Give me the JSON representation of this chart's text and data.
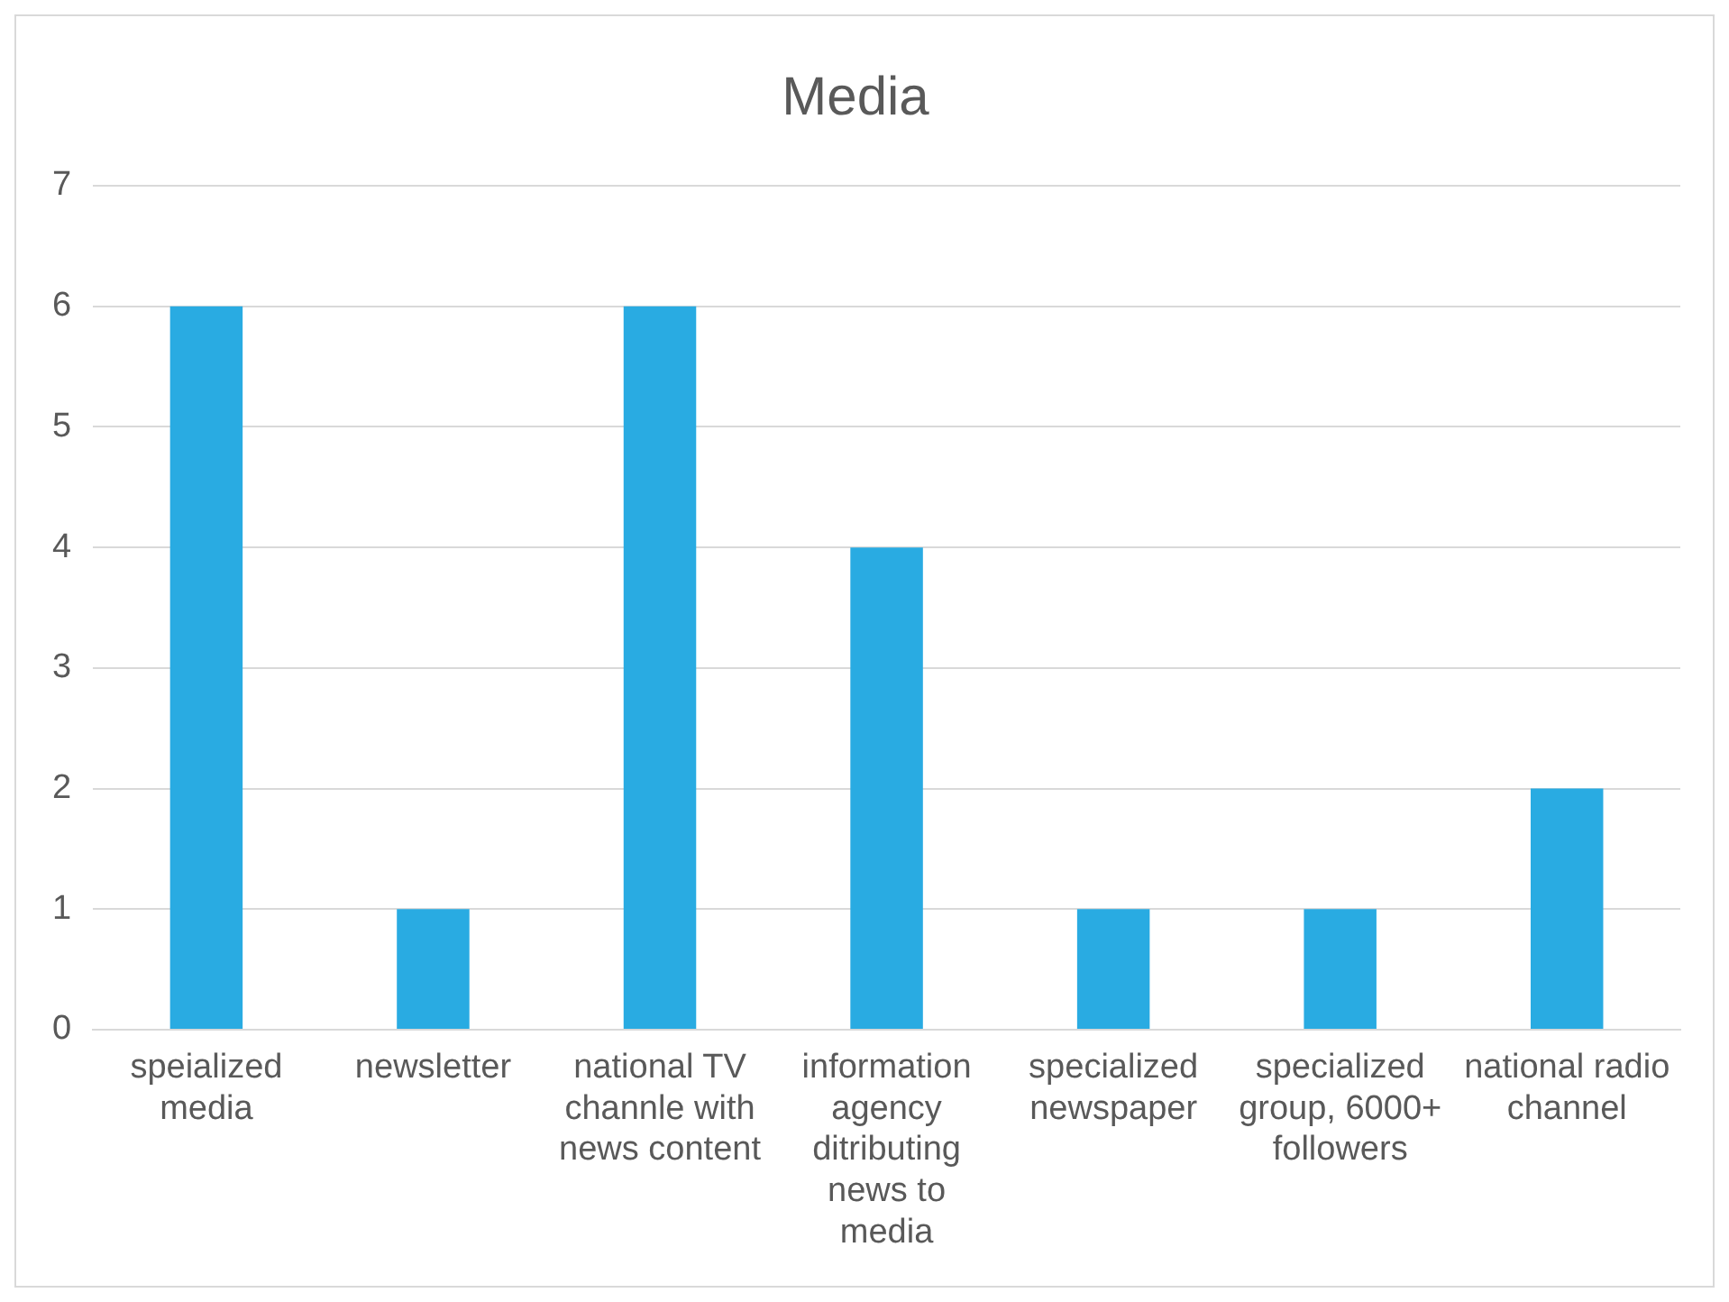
{
  "chart_data": {
    "type": "bar",
    "title": "Media",
    "categories": [
      "speialized media",
      "newsletter",
      "national TV channle with news content",
      "information agency ditributing news to media",
      "specialized newspaper",
      "specialized group, 6000+ followers",
      "national radio channel"
    ],
    "values": [
      6,
      1,
      6,
      4,
      1,
      1,
      2
    ],
    "color": "#29abe2",
    "ylim": [
      0,
      7
    ],
    "yticks": [
      0,
      1,
      2,
      3,
      4,
      5,
      6,
      7
    ],
    "grid": "y",
    "legend": false
  }
}
